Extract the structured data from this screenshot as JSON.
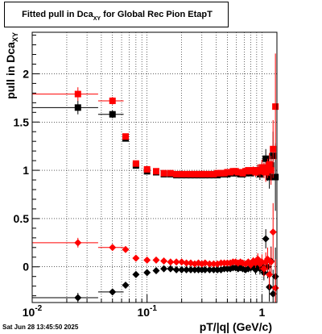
{
  "header": {
    "title_main": "Fitted pull in Dca",
    "title_sub": "XY",
    "title_rest": " for Global Rec Pion EtapT"
  },
  "footer": {
    "timestamp": "Sat Jun 28 13:45:50 2025"
  },
  "chart_data": {
    "type": "scatter",
    "title": "Fitted pull in Dca XY for Global Rec Pion EtapT",
    "xlabel": "pT/|q| (GeV/c)",
    "ylabel": "pull in Dca XY",
    "ylabel_main": "pull in Dca",
    "ylabel_sub": "XY",
    "xscale": "log",
    "xlim": [
      0.01,
      1.35
    ],
    "ylim": [
      -0.37,
      2.43
    ],
    "grid": true,
    "xticks": [
      {
        "value": 0.01,
        "label": "10",
        "exp": "-2"
      },
      {
        "value": 0.1,
        "label": "10",
        "exp": "-1"
      },
      {
        "value": 1,
        "label": "1",
        "exp": ""
      }
    ],
    "yticks": [
      0,
      0.5,
      1,
      1.5,
      2
    ],
    "ytick_labels": [
      "0",
      "0.5",
      "1",
      "1.5",
      "2"
    ],
    "series": [
      {
        "marker": "square",
        "color": "#000000",
        "points": [
          {
            "x": 0.025,
            "y": 1.65,
            "xlo": 0.01,
            "xhi": 0.0375,
            "err": 0.07
          },
          {
            "x": 0.05,
            "y": 1.58,
            "xlo": 0.0375,
            "xhi": 0.0625,
            "err": 0.04
          },
          {
            "x": 0.065,
            "y": 1.33,
            "err": 0.03
          },
          {
            "x": 0.08,
            "y": 1.05,
            "err": 0.02
          },
          {
            "x": 0.1,
            "y": 0.99,
            "err": 0.02
          },
          {
            "x": 0.12,
            "y": 0.98
          },
          {
            "x": 0.14,
            "y": 0.96
          },
          {
            "x": 0.16,
            "y": 0.96
          },
          {
            "x": 0.18,
            "y": 0.95
          },
          {
            "x": 0.2,
            "y": 0.95
          },
          {
            "x": 0.22,
            "y": 0.95
          },
          {
            "x": 0.24,
            "y": 0.95
          },
          {
            "x": 0.26,
            "y": 0.95
          },
          {
            "x": 0.28,
            "y": 0.95
          },
          {
            "x": 0.3,
            "y": 0.95
          },
          {
            "x": 0.32,
            "y": 0.95
          },
          {
            "x": 0.35,
            "y": 0.95
          },
          {
            "x": 0.38,
            "y": 0.95
          },
          {
            "x": 0.41,
            "y": 0.95
          },
          {
            "x": 0.44,
            "y": 0.96
          },
          {
            "x": 0.47,
            "y": 0.96
          },
          {
            "x": 0.5,
            "y": 0.96
          },
          {
            "x": 0.53,
            "y": 0.97
          },
          {
            "x": 0.56,
            "y": 0.97
          },
          {
            "x": 0.59,
            "y": 0.97
          },
          {
            "x": 0.62,
            "y": 0.97
          },
          {
            "x": 0.65,
            "y": 0.96
          },
          {
            "x": 0.68,
            "y": 0.96
          },
          {
            "x": 0.72,
            "y": 0.97
          },
          {
            "x": 0.76,
            "y": 0.98
          },
          {
            "x": 0.8,
            "y": 0.97,
            "err": 0.03
          },
          {
            "x": 0.84,
            "y": 0.99,
            "err": 0.04
          },
          {
            "x": 0.88,
            "y": 0.98,
            "err": 0.05
          },
          {
            "x": 0.92,
            "y": 1.0,
            "err": 0.06
          },
          {
            "x": 0.96,
            "y": 0.96,
            "err": 0.06
          },
          {
            "x": 1.0,
            "y": 1.03,
            "err": 0.08
          },
          {
            "x": 1.04,
            "y": 1.0,
            "err": 0.08
          },
          {
            "x": 1.08,
            "y": 1.12,
            "err": 0.1
          },
          {
            "x": 1.12,
            "y": 0.99,
            "err": 0.1
          },
          {
            "x": 1.16,
            "y": 0.93,
            "err": 0.12
          },
          {
            "x": 1.2,
            "y": 1.05,
            "err": 0.15
          },
          {
            "x": 1.25,
            "y": 1.15,
            "err": 0.25
          },
          {
            "x": 1.31,
            "y": 0.93,
            "err": 0.35
          }
        ]
      },
      {
        "marker": "square",
        "color": "#ff0000",
        "points": [
          {
            "x": 0.025,
            "y": 1.79,
            "xlo": 0.01,
            "xhi": 0.0375,
            "err": 0.07
          },
          {
            "x": 0.05,
            "y": 1.72,
            "xlo": 0.0375,
            "xhi": 0.0625,
            "err": 0.04
          },
          {
            "x": 0.065,
            "y": 1.35,
            "err": 0.03
          },
          {
            "x": 0.08,
            "y": 1.07,
            "err": 0.02
          },
          {
            "x": 0.1,
            "y": 1.01,
            "err": 0.02
          },
          {
            "x": 0.12,
            "y": 0.99
          },
          {
            "x": 0.14,
            "y": 0.97
          },
          {
            "x": 0.16,
            "y": 0.97
          },
          {
            "x": 0.18,
            "y": 0.96
          },
          {
            "x": 0.2,
            "y": 0.96
          },
          {
            "x": 0.22,
            "y": 0.96
          },
          {
            "x": 0.24,
            "y": 0.96
          },
          {
            "x": 0.26,
            "y": 0.96
          },
          {
            "x": 0.28,
            "y": 0.96
          },
          {
            "x": 0.3,
            "y": 0.96
          },
          {
            "x": 0.32,
            "y": 0.96
          },
          {
            "x": 0.35,
            "y": 0.96
          },
          {
            "x": 0.38,
            "y": 0.96
          },
          {
            "x": 0.41,
            "y": 0.97
          },
          {
            "x": 0.44,
            "y": 0.97
          },
          {
            "x": 0.47,
            "y": 0.97
          },
          {
            "x": 0.5,
            "y": 0.98
          },
          {
            "x": 0.53,
            "y": 0.98
          },
          {
            "x": 0.56,
            "y": 0.99
          },
          {
            "x": 0.59,
            "y": 0.99
          },
          {
            "x": 0.62,
            "y": 0.98
          },
          {
            "x": 0.65,
            "y": 0.98
          },
          {
            "x": 0.68,
            "y": 0.97
          },
          {
            "x": 0.72,
            "y": 0.99
          },
          {
            "x": 0.76,
            "y": 1.0
          },
          {
            "x": 0.8,
            "y": 0.99,
            "err": 0.03
          },
          {
            "x": 0.84,
            "y": 1.0,
            "err": 0.04
          },
          {
            "x": 0.88,
            "y": 0.98,
            "err": 0.05
          },
          {
            "x": 0.92,
            "y": 1.0,
            "err": 0.06
          },
          {
            "x": 0.96,
            "y": 0.99,
            "err": 0.06
          },
          {
            "x": 1.0,
            "y": 1.03,
            "err": 0.08
          },
          {
            "x": 1.04,
            "y": 1.0,
            "err": 0.08
          },
          {
            "x": 1.08,
            "y": 0.98,
            "err": 0.1
          },
          {
            "x": 1.12,
            "y": 1.02,
            "err": 0.1
          },
          {
            "x": 1.16,
            "y": 1.06,
            "err": 0.12
          },
          {
            "x": 1.2,
            "y": 1.0,
            "err": 0.15
          },
          {
            "x": 1.25,
            "y": 1.22,
            "err": 0.3
          },
          {
            "x": 1.31,
            "y": 1.66,
            "err": 0.55
          }
        ]
      },
      {
        "marker": "diamond",
        "color": "#000000",
        "points": [
          {
            "x": 0.025,
            "y": -0.32,
            "xlo": 0.01,
            "xhi": 0.0375,
            "err": 0.05
          },
          {
            "x": 0.05,
            "y": -0.26,
            "xlo": 0.0375,
            "xhi": 0.0625,
            "err": 0.03
          },
          {
            "x": 0.065,
            "y": -0.19,
            "err": 0.02
          },
          {
            "x": 0.08,
            "y": -0.08,
            "err": 0.02
          },
          {
            "x": 0.1,
            "y": -0.06
          },
          {
            "x": 0.12,
            "y": -0.04
          },
          {
            "x": 0.14,
            "y": -0.02
          },
          {
            "x": 0.16,
            "y": -0.02
          },
          {
            "x": 0.18,
            "y": -0.03
          },
          {
            "x": 0.2,
            "y": -0.03
          },
          {
            "x": 0.22,
            "y": -0.03
          },
          {
            "x": 0.24,
            "y": -0.03
          },
          {
            "x": 0.26,
            "y": -0.03
          },
          {
            "x": 0.28,
            "y": -0.03
          },
          {
            "x": 0.3,
            "y": -0.03
          },
          {
            "x": 0.32,
            "y": -0.03
          },
          {
            "x": 0.35,
            "y": -0.03
          },
          {
            "x": 0.38,
            "y": -0.03
          },
          {
            "x": 0.41,
            "y": -0.03
          },
          {
            "x": 0.44,
            "y": -0.03
          },
          {
            "x": 0.47,
            "y": -0.02
          },
          {
            "x": 0.5,
            "y": -0.02
          },
          {
            "x": 0.53,
            "y": -0.02
          },
          {
            "x": 0.56,
            "y": -0.01
          },
          {
            "x": 0.59,
            "y": -0.01
          },
          {
            "x": 0.62,
            "y": -0.02
          },
          {
            "x": 0.65,
            "y": -0.01
          },
          {
            "x": 0.68,
            "y": -0.02
          },
          {
            "x": 0.72,
            "y": -0.03,
            "err": 0.03
          },
          {
            "x": 0.76,
            "y": -0.02,
            "err": 0.03
          },
          {
            "x": 0.8,
            "y": -0.01,
            "err": 0.04
          },
          {
            "x": 0.84,
            "y": 0.0,
            "err": 0.04
          },
          {
            "x": 0.88,
            "y": -0.03,
            "err": 0.05
          },
          {
            "x": 0.92,
            "y": 0.02,
            "err": 0.06
          },
          {
            "x": 0.96,
            "y": -0.02,
            "err": 0.06
          },
          {
            "x": 1.0,
            "y": 0.01,
            "err": 0.08
          },
          {
            "x": 1.04,
            "y": -0.06,
            "err": 0.08
          },
          {
            "x": 1.08,
            "y": 0.29,
            "err": 0.1
          },
          {
            "x": 1.12,
            "y": 0.0,
            "err": 0.12
          },
          {
            "x": 1.16,
            "y": -0.21,
            "err": 0.15
          },
          {
            "x": 1.2,
            "y": 0.06,
            "err": 0.15
          },
          {
            "x": 1.25,
            "y": -0.28,
            "err": 0.25
          },
          {
            "x": 1.31,
            "y": -0.1,
            "err": 0.3
          }
        ]
      },
      {
        "marker": "diamond",
        "color": "#ff0000",
        "points": [
          {
            "x": 0.025,
            "y": 0.25,
            "xlo": 0.01,
            "xhi": 0.0375,
            "err": 0.05
          },
          {
            "x": 0.05,
            "y": 0.2,
            "xlo": 0.0375,
            "xhi": 0.0625,
            "err": 0.03
          },
          {
            "x": 0.065,
            "y": 0.18,
            "err": 0.02
          },
          {
            "x": 0.08,
            "y": 0.09,
            "err": 0.02
          },
          {
            "x": 0.1,
            "y": 0.07
          },
          {
            "x": 0.12,
            "y": 0.07
          },
          {
            "x": 0.14,
            "y": 0.06
          },
          {
            "x": 0.16,
            "y": 0.05
          },
          {
            "x": 0.18,
            "y": 0.05
          },
          {
            "x": 0.2,
            "y": 0.05
          },
          {
            "x": 0.22,
            "y": 0.04
          },
          {
            "x": 0.24,
            "y": 0.04
          },
          {
            "x": 0.26,
            "y": 0.03
          },
          {
            "x": 0.28,
            "y": 0.04
          },
          {
            "x": 0.3,
            "y": 0.03
          },
          {
            "x": 0.32,
            "y": 0.04
          },
          {
            "x": 0.35,
            "y": 0.03
          },
          {
            "x": 0.38,
            "y": 0.03
          },
          {
            "x": 0.41,
            "y": 0.03
          },
          {
            "x": 0.44,
            "y": 0.04
          },
          {
            "x": 0.47,
            "y": 0.04
          },
          {
            "x": 0.5,
            "y": 0.04
          },
          {
            "x": 0.53,
            "y": 0.04
          },
          {
            "x": 0.56,
            "y": 0.05
          },
          {
            "x": 0.59,
            "y": 0.05
          },
          {
            "x": 0.62,
            "y": 0.04
          },
          {
            "x": 0.65,
            "y": 0.05
          },
          {
            "x": 0.68,
            "y": 0.04
          },
          {
            "x": 0.72,
            "y": 0.03,
            "err": 0.03
          },
          {
            "x": 0.76,
            "y": 0.05,
            "err": 0.03
          },
          {
            "x": 0.8,
            "y": 0.02,
            "err": 0.04
          },
          {
            "x": 0.84,
            "y": 0.06,
            "err": 0.04
          },
          {
            "x": 0.88,
            "y": 0.04,
            "err": 0.05
          },
          {
            "x": 0.92,
            "y": 0.08,
            "err": 0.06
          },
          {
            "x": 0.96,
            "y": 0.03,
            "err": 0.06
          },
          {
            "x": 1.0,
            "y": 0.05,
            "err": 0.08
          },
          {
            "x": 1.04,
            "y": -0.02,
            "err": 0.08
          },
          {
            "x": 1.08,
            "y": 0.05,
            "err": 0.1
          },
          {
            "x": 1.12,
            "y": 0.08,
            "err": 0.12
          },
          {
            "x": 1.16,
            "y": -0.08,
            "err": 0.15
          },
          {
            "x": 1.2,
            "y": 0.05,
            "err": 0.15
          },
          {
            "x": 1.25,
            "y": 0.36,
            "err": 0.3
          },
          {
            "x": 1.31,
            "y": -0.22,
            "err": 0.3
          }
        ]
      }
    ]
  }
}
